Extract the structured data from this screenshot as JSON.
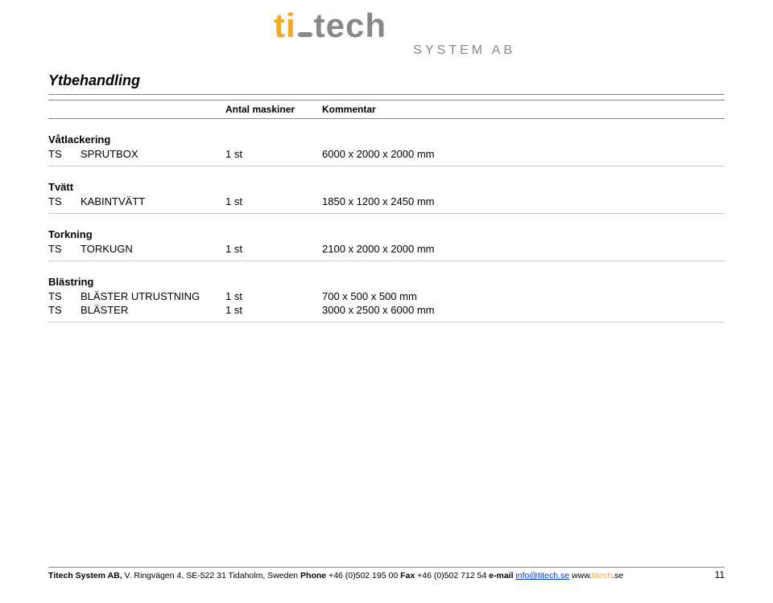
{
  "logo": {
    "part1": "ti",
    "part2": "tech",
    "sub": "SYSTEM AB",
    "orange": "#f5a623",
    "grey": "#888888"
  },
  "title": "Ytbehandling",
  "header": {
    "col1": "",
    "col2": "Antal maskiner",
    "col3": "Kommentar"
  },
  "sections": [
    {
      "head": "Våtlackering",
      "rows": [
        {
          "ts": "TS",
          "name": "SPRUTBOX",
          "qty": "1 st",
          "cmt": "6000 x 2000 x 2000 mm"
        }
      ]
    },
    {
      "head": "Tvätt",
      "rows": [
        {
          "ts": "TS",
          "name": "KABINTVÄTT",
          "qty": "1 st",
          "cmt": "1850 x 1200 x 2450 mm"
        }
      ]
    },
    {
      "head": "Torkning",
      "rows": [
        {
          "ts": "TS",
          "name": "TORKUGN",
          "qty": "1 st",
          "cmt": "2100 x 2000 x 2000 mm"
        }
      ]
    },
    {
      "head": "Blästring",
      "rows": [
        {
          "ts": "TS",
          "name": "BLÄSTER UTRUSTNING",
          "qty": "1 st",
          "cmt": "700 x 500 x 500 mm"
        },
        {
          "ts": "TS",
          "name": "BLÄSTER",
          "qty": "1 st",
          "cmt": "3000 x 2500 x 6000 mm"
        }
      ]
    }
  ],
  "footer": {
    "company": "Titech System AB, ",
    "address": "V. Ringvägen 4, SE-522 31 Tidaholm, Sweden ",
    "phone_label": "Phone",
    "phone": " +46 (0)502 195 00 ",
    "fax_label": "Fax",
    "fax": " +46 (0)502 712 54 ",
    "email_label": "e-mail ",
    "email": "info@titech.se",
    "www_label": " www.",
    "www_orange": "titech",
    "www_suffix": ".se"
  },
  "page_number": "11"
}
